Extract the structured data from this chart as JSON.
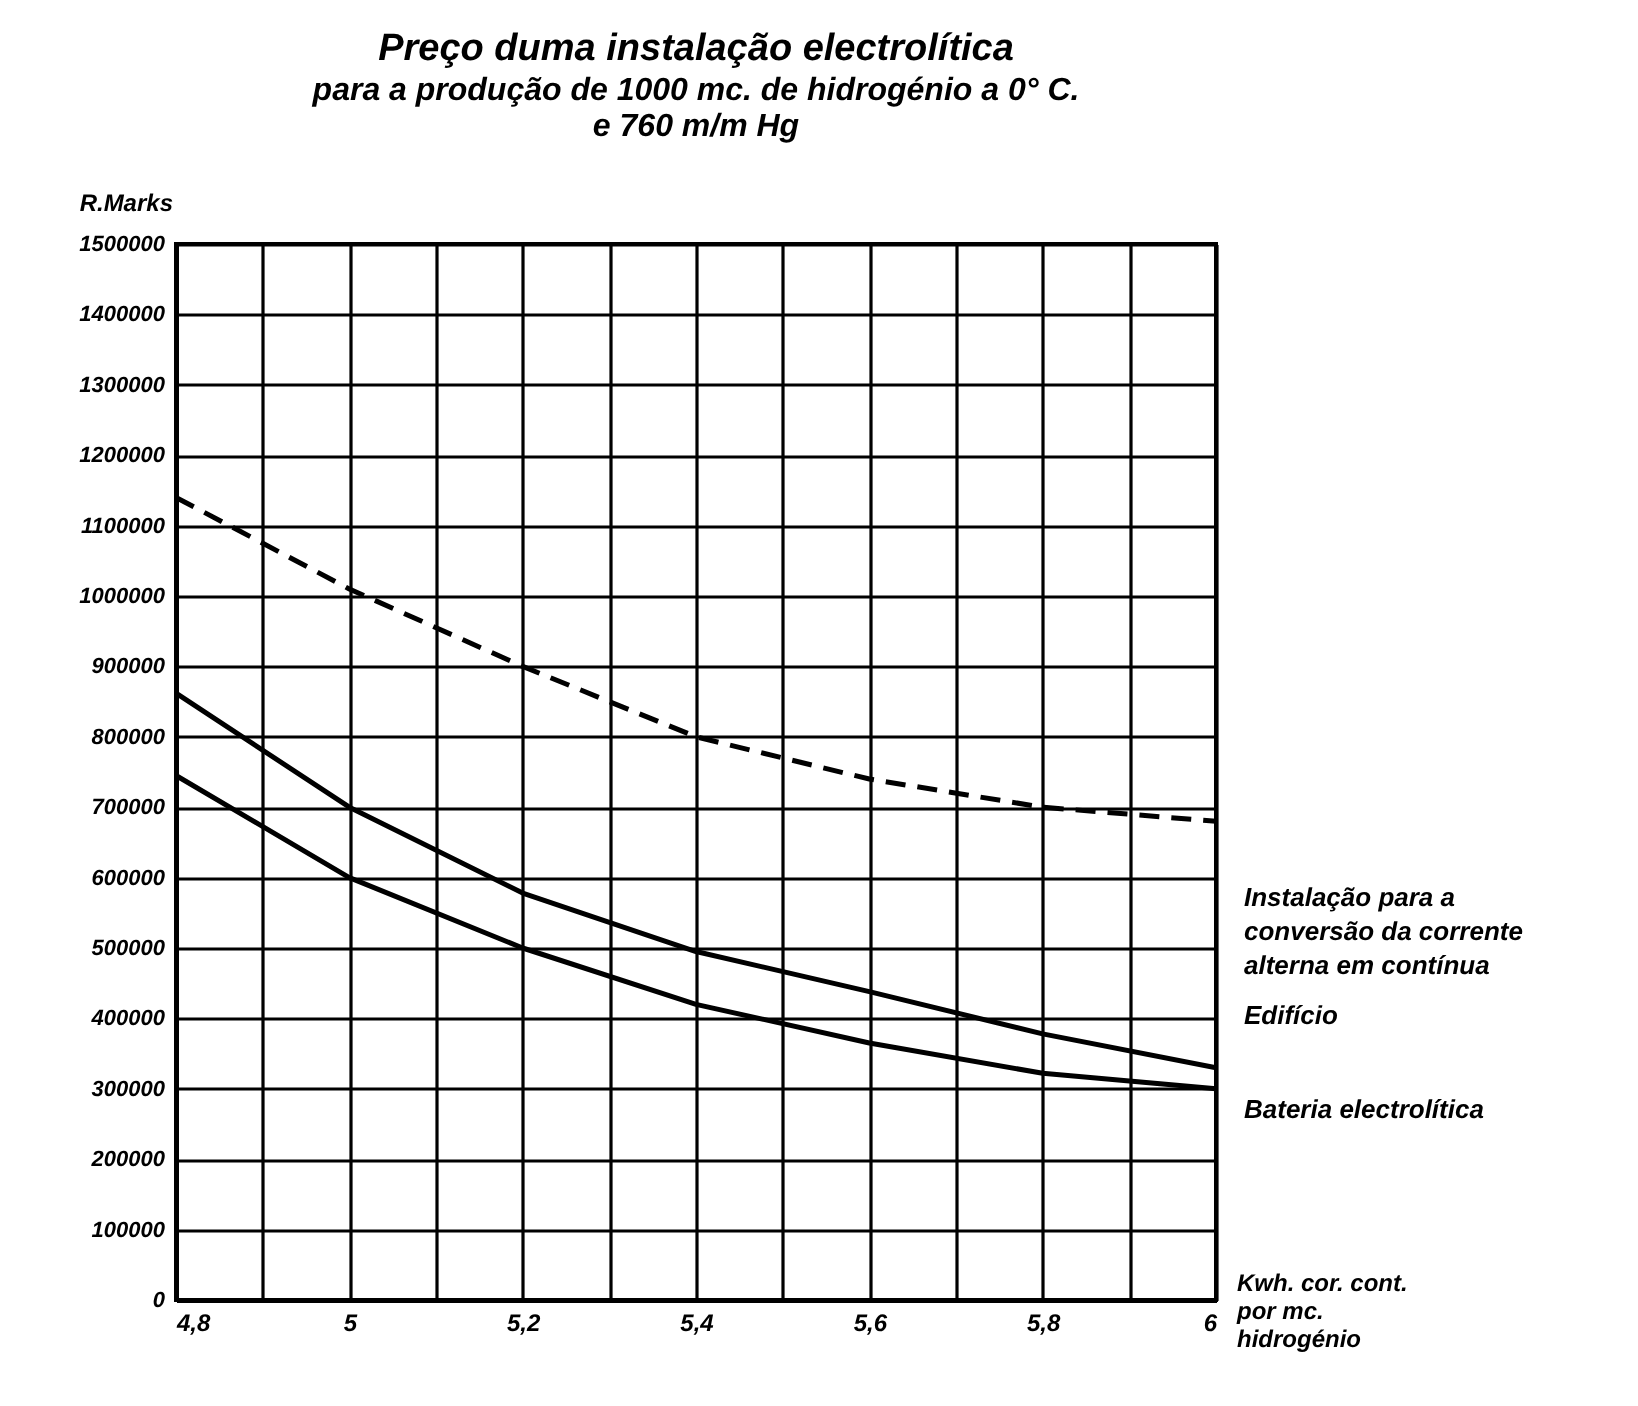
{
  "chart_data": {
    "type": "line",
    "title": "Preço duma instalação electrolítica",
    "subtitle": "para a produção de 1000 mc. de hidrogénio a 0° C. e 760 m/m Hg",
    "xlabel": "Kwh. cor. cont. por mc. hidrogénio",
    "ylabel": "R.Marks",
    "x": [
      4.8,
      5.0,
      5.2,
      5.4,
      5.6,
      5.8,
      6.0
    ],
    "series": [
      {
        "color": "#000000",
        "line_style": "dashed",
        "values": [
          1140000,
          1010000,
          900000,
          800000,
          740000,
          700000,
          680000
        ]
      },
      {
        "color": "#000000",
        "line_style": "solid",
        "values": [
          862000,
          700000,
          578000,
          495000,
          438000,
          378000,
          330000
        ]
      },
      {
        "color": "#000000",
        "line_style": "solid",
        "values": [
          745000,
          600000,
          500000,
          420000,
          365000,
          322000,
          300000
        ]
      }
    ],
    "xlim": [
      4.8,
      6.0
    ],
    "xticks": [
      {
        "value": 4.8,
        "label": "4,8"
      },
      {
        "value": 4.9,
        "label": null
      },
      {
        "value": 5.0,
        "label": "5"
      },
      {
        "value": 5.1,
        "label": null
      },
      {
        "value": 5.2,
        "label": "5,2"
      },
      {
        "value": 5.3,
        "label": null
      },
      {
        "value": 5.4,
        "label": "5,4"
      },
      {
        "value": 5.5,
        "label": null
      },
      {
        "value": 5.6,
        "label": "5,6"
      },
      {
        "value": 5.7,
        "label": null
      },
      {
        "value": 5.8,
        "label": "5,8"
      },
      {
        "value": 5.9,
        "label": null
      },
      {
        "value": 6.0,
        "label": "6"
      }
    ],
    "ylim": [
      0,
      1500000
    ],
    "yticks": [
      0,
      100000,
      200000,
      300000,
      400000,
      500000,
      600000,
      700000,
      800000,
      900000,
      1000000,
      1100000,
      1200000,
      1300000,
      1400000,
      1500000
    ],
    "grid": true,
    "marker": "none",
    "annotations": [
      "Instalação para a conversão da corrente alterna em contínua",
      "Edifício",
      "Bateria electrolítica"
    ]
  }
}
